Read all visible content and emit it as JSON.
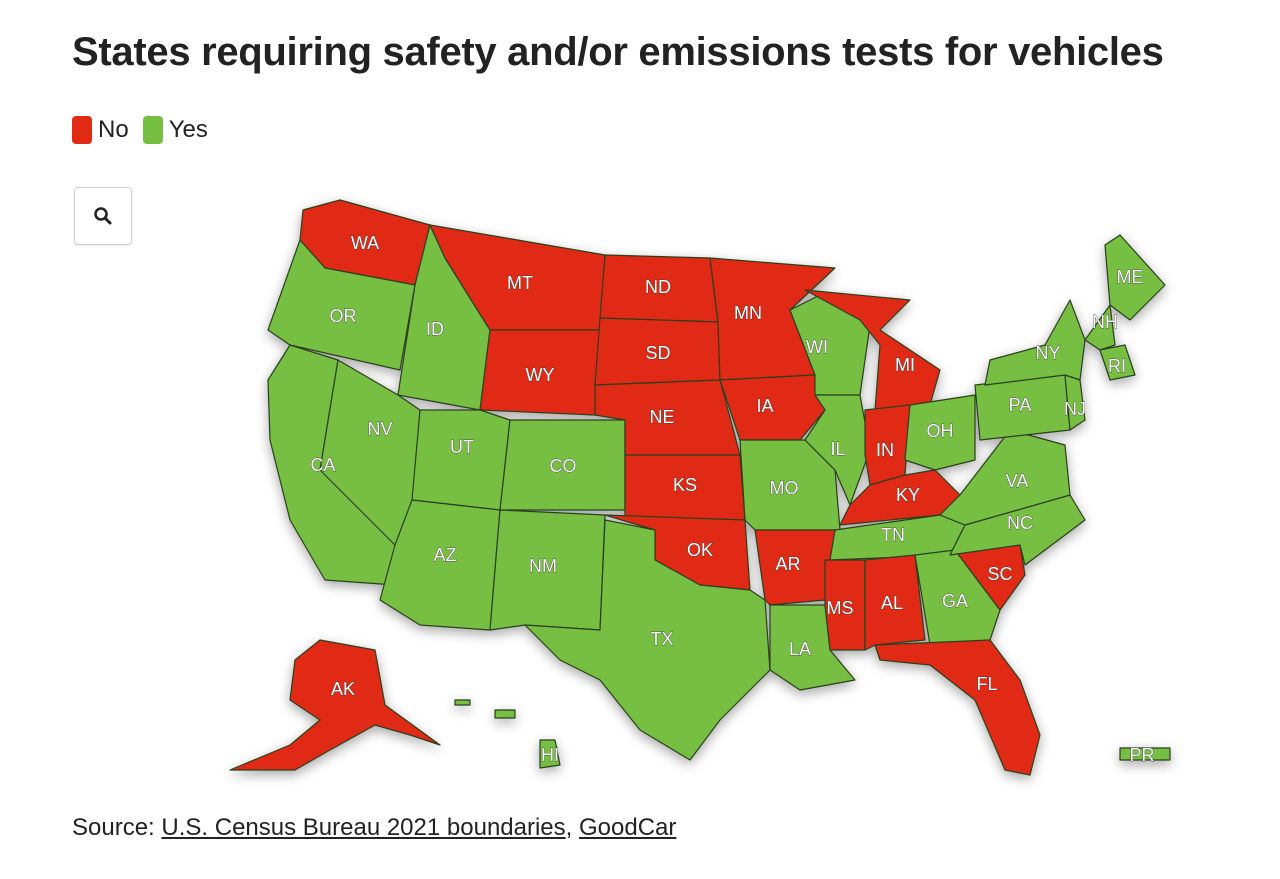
{
  "title": "States requiring safety and/or emissions tests for vehicles",
  "legend": {
    "no_label": "No",
    "yes_label": "Yes",
    "no_color": "#e02a13",
    "yes_color": "#77bf42"
  },
  "zoom_icon": "search-icon",
  "source": {
    "prefix": "Source:",
    "link1": "U.S. Census Bureau 2021 boundaries",
    "separator": ",",
    "link2": "GoodCar"
  },
  "states": {
    "WA": "No",
    "OR": "Yes",
    "CA": "Yes",
    "ID": "Yes",
    "NV": "Yes",
    "UT": "Yes",
    "AZ": "Yes",
    "MT": "No",
    "WY": "No",
    "CO": "Yes",
    "NM": "Yes",
    "ND": "No",
    "SD": "No",
    "NE": "No",
    "KS": "No",
    "OK": "No",
    "TX": "Yes",
    "MN": "No",
    "IA": "No",
    "MO": "Yes",
    "AR": "No",
    "LA": "Yes",
    "WI": "Yes",
    "IL": "Yes",
    "MI": "No",
    "IN": "No",
    "OH": "Yes",
    "KY": "No",
    "TN": "Yes",
    "MS": "No",
    "AL": "No",
    "GA": "Yes",
    "FL": "No",
    "SC": "No",
    "NC": "Yes",
    "VA": "Yes",
    "PA": "Yes",
    "NY": "Yes",
    "NJ": "Yes",
    "ME": "Yes",
    "NH": "Yes",
    "RI": "Yes",
    "AK": "No",
    "HI": "Yes",
    "PR": "Yes"
  }
}
